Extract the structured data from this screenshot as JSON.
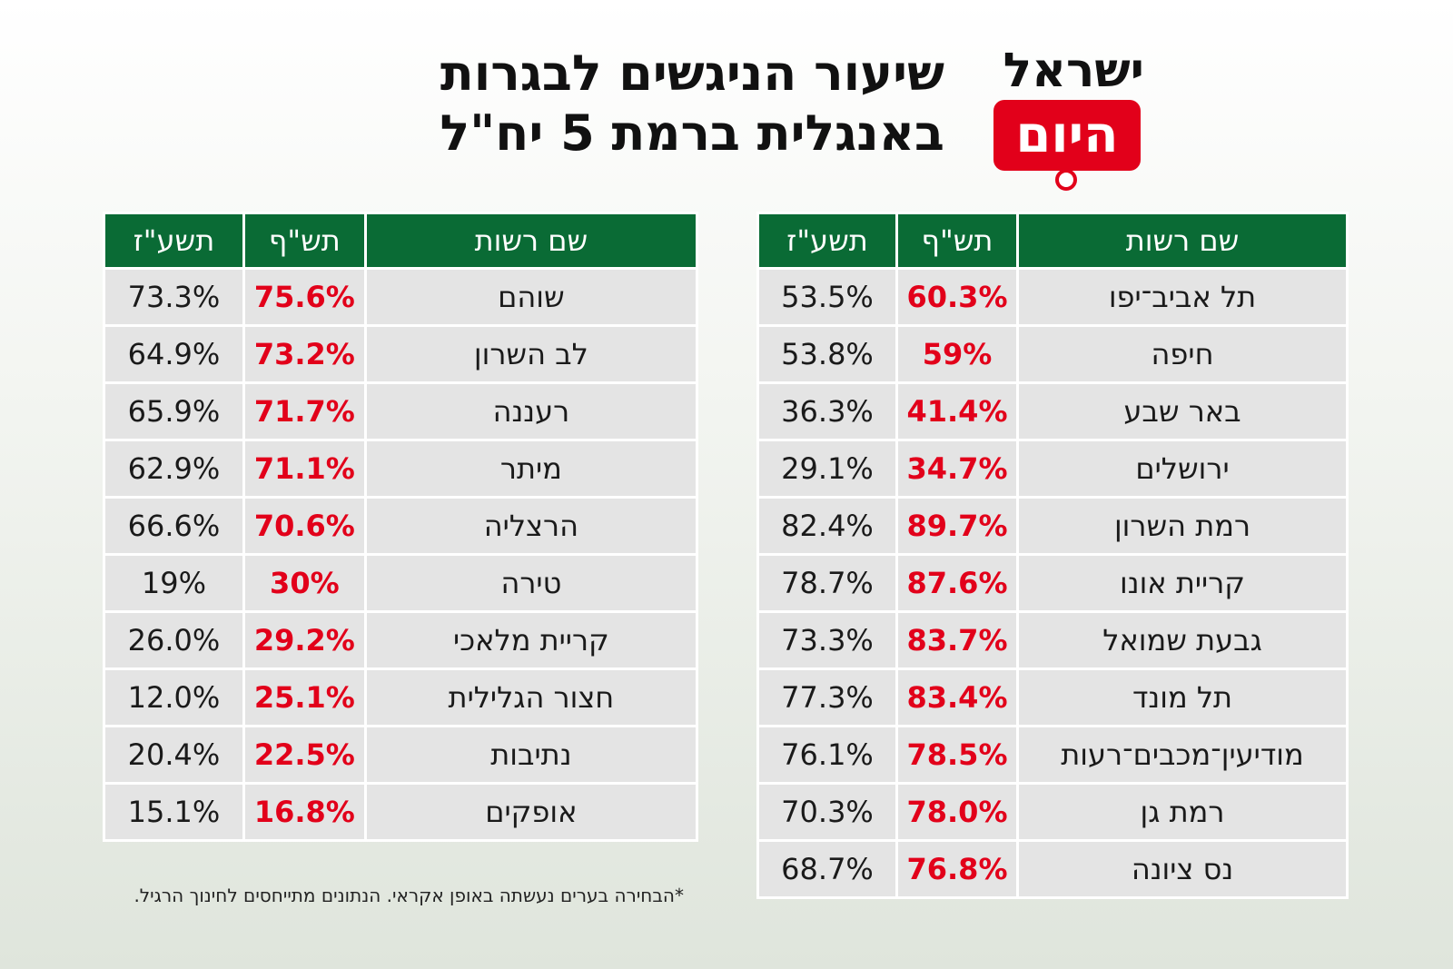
{
  "title": {
    "line1": "שיעור הניגשים לבגרות",
    "line2": "באנגלית ברמת 5 יח\"ל"
  },
  "logo": {
    "top_text": "ישראל",
    "box_text": "היום"
  },
  "colors": {
    "header_green": "#0a6b35",
    "highlight_red": "#e2001a",
    "cell_gray": "#e4e4e4"
  },
  "footnote": "*הבחירה בערים נעשתה באופן אקראי. הנתונים מתייחסים לחינוך הרגיל.",
  "chart_data": [
    {
      "type": "table",
      "title": "שיעור הניגשים לבגרות באנגלית ברמת 5 יח\"ל",
      "columns": [
        "שם רשות",
        "תש\"ף",
        "תשע\"ז"
      ],
      "rows": [
        [
          "תל אביב־יפו",
          "60.3%",
          "53.5%"
        ],
        [
          "חיפה",
          "59%",
          "53.8%"
        ],
        [
          "באר שבע",
          "41.4%",
          "36.3%"
        ],
        [
          "ירושלים",
          "34.7%",
          "29.1%"
        ],
        [
          "רמת השרון",
          "89.7%",
          "82.4%"
        ],
        [
          "קריית אונו",
          "87.6%",
          "78.7%"
        ],
        [
          "גבעת שמואל",
          "83.7%",
          "73.3%"
        ],
        [
          "תל מונד",
          "83.4%",
          "77.3%"
        ],
        [
          "מודיעין־מכבים־רעות",
          "78.5%",
          "76.1%"
        ],
        [
          "רמת גן",
          "78.0%",
          "70.3%"
        ],
        [
          "נס ציונה",
          "76.8%",
          "68.7%"
        ]
      ]
    },
    {
      "type": "table",
      "title": "שיעור הניגשים לבגרות באנגלית ברמת 5 יח\"ל",
      "columns": [
        "שם רשות",
        "תש\"ף",
        "תשע\"ז"
      ],
      "rows": [
        [
          "שוהם",
          "75.6%",
          "73.3%"
        ],
        [
          "לב השרון",
          "73.2%",
          "64.9%"
        ],
        [
          "רעננה",
          "71.7%",
          "65.9%"
        ],
        [
          "מיתר",
          "71.1%",
          "62.9%"
        ],
        [
          "הרצליה",
          "70.6%",
          "66.6%"
        ],
        [
          "טירה",
          "30%",
          "19%"
        ],
        [
          "קריית מלאכי",
          "29.2%",
          "26.0%"
        ],
        [
          "חצור הגלילית",
          "25.1%",
          "12.0%"
        ],
        [
          "נתיבות",
          "22.5%",
          "20.4%"
        ],
        [
          "אופקים",
          "16.8%",
          "15.1%"
        ]
      ]
    }
  ]
}
